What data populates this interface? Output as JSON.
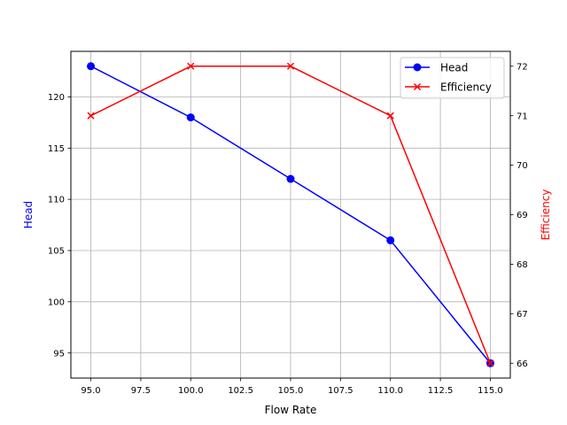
{
  "chart_data": {
    "type": "line",
    "title": "",
    "xlabel": "Flow Rate",
    "x": [
      95,
      100,
      105,
      110,
      115
    ],
    "xlim": [
      94,
      116
    ],
    "xticks": [
      95.0,
      97.5,
      100.0,
      102.5,
      105.0,
      107.5,
      110.0,
      112.5,
      115.0
    ],
    "xtick_labels": [
      "95.0",
      "97.5",
      "100.0",
      "102.5",
      "105.0",
      "107.5",
      "110.0",
      "112.5",
      "115.0"
    ],
    "grid": true,
    "legend_position": "upper right",
    "series": [
      {
        "name": "Head",
        "axis": "left",
        "color": "#0000ff",
        "marker": "o",
        "values": [
          123,
          118,
          112,
          106,
          94
        ]
      },
      {
        "name": "Efficiency",
        "axis": "right",
        "color": "#ff0000",
        "marker": "x",
        "values": [
          71,
          72,
          72,
          71,
          66
        ]
      }
    ],
    "y_left": {
      "label": "Head",
      "label_color": "#0000ff",
      "ylim": [
        92.55,
        124.45
      ],
      "ticks": [
        95,
        100,
        105,
        110,
        115,
        120
      ],
      "tick_labels": [
        "95",
        "100",
        "105",
        "110",
        "115",
        "120"
      ]
    },
    "y_right": {
      "label": "Efficiency",
      "label_color": "#ff0000",
      "ylim": [
        65.7,
        72.3
      ],
      "ticks": [
        66,
        67,
        68,
        69,
        70,
        71,
        72
      ],
      "tick_labels": [
        "66",
        "67",
        "68",
        "69",
        "70",
        "71",
        "72"
      ]
    }
  }
}
